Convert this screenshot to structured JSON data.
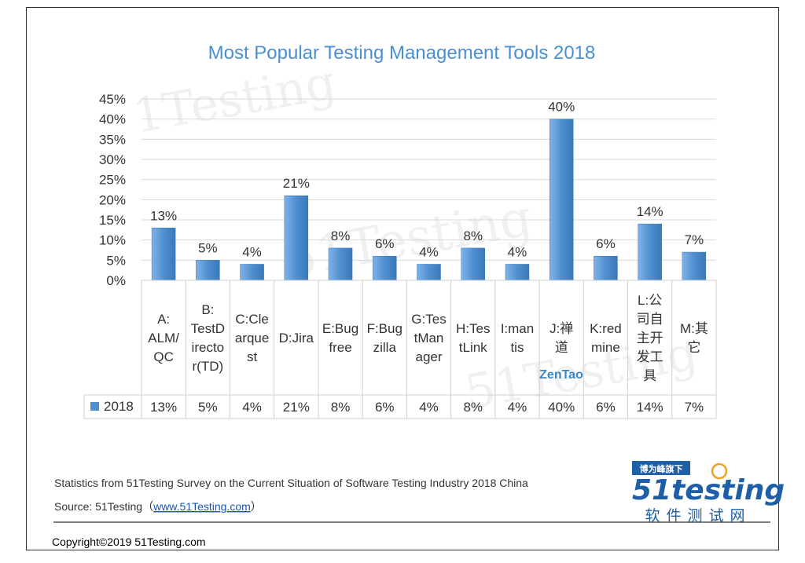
{
  "chart_data": {
    "type": "bar",
    "title": "Most Popular Testing Management Tools 2018",
    "categories": [
      [
        "A:",
        "ALM/",
        "QC"
      ],
      [
        "B:",
        "TestD",
        "irecto",
        "r(TD)"
      ],
      [
        "C:Cle",
        "arque",
        "st"
      ],
      [
        "D:Jira"
      ],
      [
        "E:Bug",
        "free"
      ],
      [
        "F:Bug",
        "zilla"
      ],
      [
        "G:Tes",
        "tMan",
        "ager"
      ],
      [
        "H:Tes",
        "tLink"
      ],
      [
        "I:man",
        "tis"
      ],
      [
        "J:禅",
        "道"
      ],
      [
        "K:red",
        "mine"
      ],
      [
        "L:公",
        "司自",
        "主开",
        "发工",
        "具"
      ],
      [
        "M:其",
        "它"
      ]
    ],
    "series": [
      {
        "name": "2018",
        "values": [
          13,
          5,
          4,
          21,
          8,
          6,
          4,
          8,
          4,
          40,
          6,
          14,
          7
        ],
        "labels": [
          "13%",
          "5%",
          "4%",
          "21%",
          "8%",
          "6%",
          "4%",
          "8%",
          "4%",
          "40%",
          "6%",
          "14%",
          "7%"
        ]
      }
    ],
    "yticks": [
      "0%",
      "5%",
      "10%",
      "15%",
      "20%",
      "25%",
      "30%",
      "35%",
      "40%",
      "45%"
    ],
    "ylim": [
      0,
      45
    ],
    "grid": true,
    "legend": "data-table",
    "annotation": "ZenTao"
  },
  "colors": {
    "bar": "#4f8fd0",
    "bar_light": "#7fb3e8",
    "title": "#4a8fd4",
    "grid": "#d9d9d9",
    "link": "#1a56b0"
  },
  "footer": {
    "statistics": "Statistics from 51Testing Survey on the Current Situation of Software Testing Industry 2018 China",
    "source_prefix": "Source: 51Testing（",
    "source_link": "www.51Testing.com",
    "source_suffix": "）",
    "copyright": "Copyright©2019 51Testing.com"
  },
  "logo": {
    "tagline": "博为峰旗下",
    "wordmark": "51testing",
    "subtitle": "软件测试网"
  },
  "watermark": [
    "1Testing",
    "51Testing",
    "51Testing"
  ]
}
